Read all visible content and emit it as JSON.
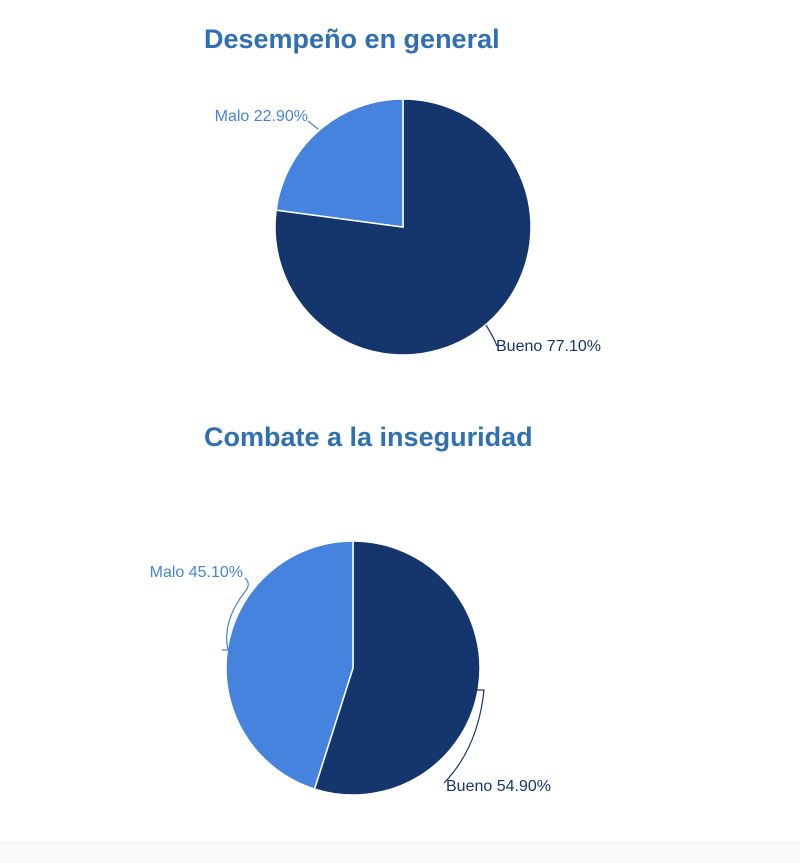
{
  "colors": {
    "title": "#2f6fb2",
    "bueno": "#15366d",
    "malo": "#4583df"
  },
  "chart_data": [
    {
      "type": "pie",
      "title": "Desempeño en general",
      "slices": [
        {
          "label": "Bueno",
          "value": 77.1,
          "display": "Bueno 77.10%",
          "color": "#15366d"
        },
        {
          "label": "Malo",
          "value": 22.9,
          "display": "Malo 22.90%",
          "color": "#4583df"
        }
      ]
    },
    {
      "type": "pie",
      "title": "Combate a la inseguridad",
      "slices": [
        {
          "label": "Bueno",
          "value": 54.9,
          "display": "Bueno 54.90%",
          "color": "#15366d"
        },
        {
          "label": "Malo",
          "value": 45.1,
          "display": "Malo 45.10%",
          "color": "#4583df"
        }
      ]
    }
  ]
}
